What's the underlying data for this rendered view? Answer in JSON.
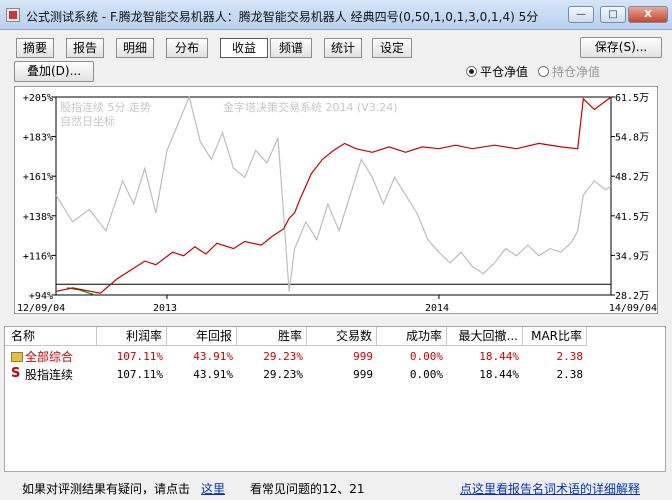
{
  "window": {
    "title": "公式测试系统 - F.腾龙智能交易机器人：腾龙智能交易机器人 经典四号(0,50,1,0,1,3,0,1,4) 5分",
    "min_label": "—",
    "max_label": "□",
    "close_label": "X"
  },
  "tabs": [
    "摘要",
    "报告",
    "明细",
    "分布",
    "收益",
    "频谱",
    "统计",
    "设定"
  ],
  "toolbar": {
    "save_label": "保存(S)...",
    "overlay_label": "叠加(D)...",
    "radio_flat": "平仓净值",
    "radio_hold": "持仓净值"
  },
  "chart_data": {
    "type": "line",
    "overlay_texts": [
      "股指连续 5分 走势",
      "自然日坐标",
      "金字塔决策交易系统 2014 (V3.24)"
    ],
    "left_axis": {
      "ticks": [
        "+205%",
        "+183%",
        "+161%",
        "+138%",
        "+116%",
        "+94%"
      ],
      "range": [
        94,
        205
      ]
    },
    "right_axis": {
      "ticks": [
        "61.5万",
        "54.8万",
        "48.2万",
        "41.5万",
        "34.9万",
        "28.2万"
      ],
      "range": [
        28.2,
        61.5
      ]
    },
    "x_labels": [
      "12/09/04",
      "2013",
      "2014",
      "14/09/04"
    ],
    "series": [
      {
        "color": "#cc0000",
        "points": [
          [
            0.0,
            96
          ],
          [
            0.03,
            98
          ],
          [
            0.08,
            95
          ],
          [
            0.11,
            103
          ],
          [
            0.14,
            109
          ],
          [
            0.16,
            113
          ],
          [
            0.18,
            111
          ],
          [
            0.21,
            118
          ],
          [
            0.23,
            116
          ],
          [
            0.25,
            121
          ],
          [
            0.27,
            117
          ],
          [
            0.29,
            123
          ],
          [
            0.32,
            120
          ],
          [
            0.34,
            124
          ],
          [
            0.37,
            122
          ],
          [
            0.39,
            127
          ],
          [
            0.41,
            131
          ],
          [
            0.42,
            137
          ],
          [
            0.43,
            140
          ],
          [
            0.44,
            148
          ],
          [
            0.46,
            162
          ],
          [
            0.48,
            170
          ],
          [
            0.5,
            175
          ],
          [
            0.52,
            179
          ],
          [
            0.54,
            176
          ],
          [
            0.57,
            174
          ],
          [
            0.6,
            177
          ],
          [
            0.63,
            174
          ],
          [
            0.66,
            177
          ],
          [
            0.69,
            176
          ],
          [
            0.72,
            178
          ],
          [
            0.75,
            176
          ],
          [
            0.79,
            178
          ],
          [
            0.83,
            176
          ],
          [
            0.87,
            179
          ],
          [
            0.91,
            177
          ],
          [
            0.94,
            176
          ],
          [
            0.95,
            204
          ],
          [
            0.97,
            198
          ],
          [
            1.0,
            205
          ]
        ]
      },
      {
        "color": "#bdbdbd",
        "points": [
          [
            0.0,
            150
          ],
          [
            0.03,
            135
          ],
          [
            0.06,
            142
          ],
          [
            0.09,
            130
          ],
          [
            0.12,
            158
          ],
          [
            0.14,
            145
          ],
          [
            0.16,
            165
          ],
          [
            0.18,
            140
          ],
          [
            0.2,
            175
          ],
          [
            0.22,
            190
          ],
          [
            0.24,
            205
          ],
          [
            0.26,
            180
          ],
          [
            0.28,
            170
          ],
          [
            0.3,
            185
          ],
          [
            0.32,
            165
          ],
          [
            0.34,
            160
          ],
          [
            0.36,
            175
          ],
          [
            0.38,
            168
          ],
          [
            0.4,
            182
          ],
          [
            0.41,
            140
          ],
          [
            0.42,
            96
          ],
          [
            0.43,
            120
          ],
          [
            0.45,
            135
          ],
          [
            0.47,
            125
          ],
          [
            0.49,
            145
          ],
          [
            0.51,
            130
          ],
          [
            0.53,
            150
          ],
          [
            0.55,
            170
          ],
          [
            0.57,
            160
          ],
          [
            0.59,
            145
          ],
          [
            0.61,
            160
          ],
          [
            0.63,
            150
          ],
          [
            0.65,
            140
          ],
          [
            0.67,
            125
          ],
          [
            0.69,
            118
          ],
          [
            0.71,
            112
          ],
          [
            0.73,
            118
          ],
          [
            0.75,
            110
          ],
          [
            0.77,
            106
          ],
          [
            0.79,
            112
          ],
          [
            0.81,
            120
          ],
          [
            0.83,
            116
          ],
          [
            0.85,
            122
          ],
          [
            0.87,
            116
          ],
          [
            0.89,
            120
          ],
          [
            0.91,
            118
          ],
          [
            0.93,
            124
          ],
          [
            0.94,
            130
          ],
          [
            0.95,
            150
          ],
          [
            0.97,
            158
          ],
          [
            0.99,
            153
          ],
          [
            1.0,
            155
          ]
        ]
      },
      {
        "color": "#008800",
        "points": [
          [
            0.02,
            98
          ],
          [
            0.04,
            97
          ],
          [
            0.06,
            95
          ],
          [
            0.07,
            94
          ]
        ]
      }
    ]
  },
  "table": {
    "headers": [
      "名称",
      "利润率",
      "年回报",
      "胜率",
      "交易数",
      "成功率",
      "最大回撤...",
      "MAR比率"
    ],
    "rows": [
      {
        "icon": "folder-icon",
        "cells": [
          "全部综合",
          "107.11%",
          "43.91%",
          "29.23%",
          "999",
          "0.00%",
          "18.44%",
          "2.38"
        ],
        "red": true
      },
      {
        "icon": "s-icon",
        "icon_text": "S",
        "cells": [
          "股指连续",
          "107.11%",
          "43.91%",
          "29.23%",
          "999",
          "0.00%",
          "18.44%",
          "2.38"
        ],
        "red": false
      }
    ]
  },
  "footer": {
    "question_text": "如果对评测结果有疑问，请点击",
    "here_link": "这里",
    "faq_text": "看常见问题的12、21",
    "glossary_link": "点这里看报告名词术语的详细解释"
  }
}
